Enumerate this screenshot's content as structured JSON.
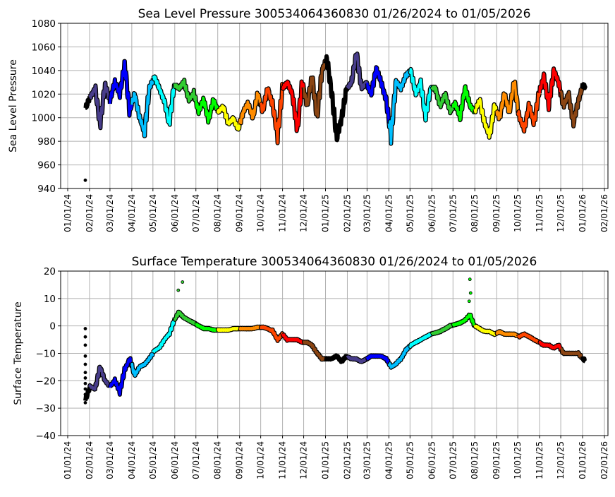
{
  "chart_data": [
    {
      "type": "line",
      "title": "Sea Level Pressure 300534064360830  01/26/2024 to 01/05/2026",
      "xlabel": "",
      "ylabel": "Sea Level Pressure",
      "ylim": [
        940,
        1080
      ],
      "yticks": [
        940,
        960,
        980,
        1000,
        1020,
        1040,
        1060,
        1080
      ],
      "xlim": [
        "2023-12-22",
        "2026-02-06"
      ],
      "xtick_dates": [
        "2024-01-01",
        "2024-02-01",
        "2024-03-01",
        "2024-04-01",
        "2024-05-01",
        "2024-06-01",
        "2024-07-01",
        "2024-08-01",
        "2024-09-01",
        "2024-10-01",
        "2024-11-01",
        "2024-12-01",
        "2025-01-01",
        "2025-02-01",
        "2025-03-01",
        "2025-04-01",
        "2025-05-01",
        "2025-06-01",
        "2025-07-01",
        "2025-08-01",
        "2025-09-01",
        "2025-10-01",
        "2025-11-01",
        "2025-12-01",
        "2026-01-01",
        "2026-02-01"
      ],
      "xtick_labels": [
        "01/01/24",
        "02/01/24",
        "03/01/24",
        "04/01/24",
        "05/01/24",
        "06/01/24",
        "07/01/24",
        "08/01/24",
        "09/01/24",
        "10/01/24",
        "11/01/24",
        "12/01/24",
        "01/01/25",
        "02/01/25",
        "03/01/25",
        "04/01/25",
        "05/01/25",
        "06/01/25",
        "07/01/25",
        "08/01/25",
        "09/01/25",
        "10/01/25",
        "11/01/25",
        "12/01/25",
        "01/01/26",
        "02/01/26"
      ],
      "grid": true,
      "series_start": "2024-01-26",
      "step_days": 7,
      "values": [
        1008,
        1018,
        1025,
        995,
        1028,
        1015,
        1030,
        1020,
        1045,
        1005,
        1020,
        1000,
        988,
        1025,
        1035,
        1025,
        1015,
        995,
        1028,
        1025,
        1030,
        1015,
        1020,
        1005,
        1015,
        998,
        1015,
        1005,
        1010,
        995,
        1000,
        990,
        1005,
        1012,
        1000,
        1020,
        1005,
        1025,
        1010,
        985,
        1025,
        1030,
        1020,
        990,
        1030,
        1010,
        1035,
        1000,
        1040,
        1050,
        1020,
        982,
        1000,
        1025,
        1030,
        1055,
        1025,
        1030,
        1020,
        1042,
        1030,
        1015,
        985,
        1030,
        1025,
        1035,
        1040,
        1020,
        1030,
        1000,
        1025,
        1025,
        1010,
        1020,
        1005,
        1012,
        1000,
        1025,
        1010,
        1005,
        1015,
        995,
        985,
        1010,
        1000,
        1020,
        1005,
        1030,
        1000,
        990,
        1010,
        995,
        1020,
        1035,
        1010,
        1040,
        1030,
        1010,
        1020,
        995,
        1015,
        1028
      ],
      "series_end": "2026-01-05",
      "end_value": 1025,
      "outliers": [
        {
          "date": "2024-01-26",
          "value": 947
        }
      ]
    },
    {
      "type": "line",
      "title": "Surface Temperature 300534064360830  01/26/2024 to 01/05/2026",
      "xlabel": "",
      "ylabel": "Surface Temperature",
      "ylim": [
        -40,
        20
      ],
      "yticks": [
        -40,
        -30,
        -20,
        -10,
        0,
        10,
        20
      ],
      "xlim": [
        "2023-12-22",
        "2026-02-06"
      ],
      "xtick_dates": [
        "2024-01-01",
        "2024-02-01",
        "2024-03-01",
        "2024-04-01",
        "2024-05-01",
        "2024-06-01",
        "2024-07-01",
        "2024-08-01",
        "2024-09-01",
        "2024-10-01",
        "2024-11-01",
        "2024-12-01",
        "2025-01-01",
        "2025-02-01",
        "2025-03-01",
        "2025-04-01",
        "2025-05-01",
        "2025-06-01",
        "2025-07-01",
        "2025-08-01",
        "2025-09-01",
        "2025-10-01",
        "2025-11-01",
        "2025-12-01",
        "2026-01-01",
        "2026-02-01"
      ],
      "xtick_labels": [
        "01/01/24",
        "02/01/24",
        "03/01/24",
        "04/01/24",
        "05/01/24",
        "06/01/24",
        "07/01/24",
        "08/01/24",
        "09/01/24",
        "10/01/24",
        "11/01/24",
        "12/01/24",
        "01/01/25",
        "02/01/25",
        "03/01/25",
        "04/01/25",
        "05/01/25",
        "06/01/25",
        "07/01/25",
        "08/01/25",
        "09/01/25",
        "10/01/25",
        "11/01/25",
        "12/01/25",
        "01/01/26",
        "02/01/26"
      ],
      "grid": true,
      "series_start": "2024-01-26",
      "step_days": 7,
      "values": [
        -27,
        -22,
        -23,
        -15,
        -20,
        -22,
        -20,
        -24,
        -16,
        -12,
        -18,
        -15,
        -14,
        -12,
        -9,
        -8,
        -5,
        -3,
        2,
        5,
        3,
        2,
        1,
        0,
        -1,
        -1,
        -1.5,
        -1.5,
        -1.5,
        -1.5,
        -1,
        -1,
        -1,
        -1,
        -1,
        -0.5,
        -0.5,
        -1,
        -2,
        -5,
        -3,
        -5,
        -5,
        -5,
        -6,
        -6,
        -7,
        -10,
        -12,
        -12,
        -12,
        -11,
        -13,
        -11,
        -12,
        -12,
        -13,
        -12,
        -11,
        -11,
        -11,
        -12,
        -15,
        -14,
        -12,
        -9,
        -7,
        -6,
        -5,
        -4,
        -3,
        -2.5,
        -2,
        -1,
        0,
        0.5,
        1,
        2,
        4,
        0,
        -1,
        -2,
        -2,
        -3,
        -2,
        -3,
        -3,
        -3,
        -4,
        -3,
        -4,
        -5,
        -6,
        -7,
        -7,
        -8,
        -7,
        -10,
        -10,
        -10,
        -10
      ],
      "series_end": "2026-01-05",
      "end_value": -13,
      "outliers": [
        {
          "date": "2024-01-26",
          "value": -1
        },
        {
          "date": "2024-01-26",
          "value": -4
        },
        {
          "date": "2024-01-26",
          "value": -7
        },
        {
          "date": "2024-01-26",
          "value": -11
        },
        {
          "date": "2024-01-26",
          "value": -14
        },
        {
          "date": "2024-01-26",
          "value": -17
        },
        {
          "date": "2024-01-26",
          "value": -19
        },
        {
          "date": "2024-01-26",
          "value": -21
        },
        {
          "date": "2024-01-26",
          "value": -23
        },
        {
          "date": "2024-01-26",
          "value": -25
        },
        {
          "date": "2024-01-26",
          "value": -28
        },
        {
          "date": "2024-06-06",
          "value": 13
        },
        {
          "date": "2024-06-12",
          "value": 16
        },
        {
          "date": "2025-07-25",
          "value": 17
        },
        {
          "date": "2025-07-26",
          "value": 12
        },
        {
          "date": "2025-07-24",
          "value": 9
        }
      ]
    }
  ],
  "month_colors": [
    "#000000",
    "#483D8B",
    "#0000FF",
    "#00BFFF",
    "#00FFFF",
    "#32CD32",
    "#00FF00",
    "#FFFF00",
    "#FF8C00",
    "#FF4500",
    "#FF0000",
    "#8B4513"
  ]
}
